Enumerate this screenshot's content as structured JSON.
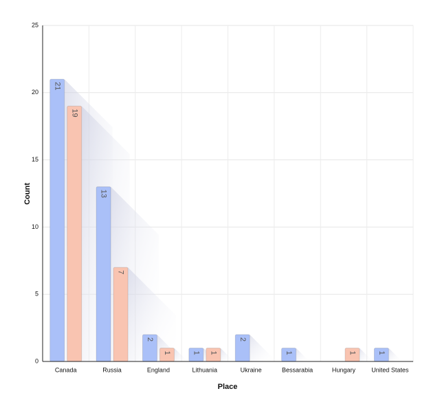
{
  "chart_data": {
    "type": "bar",
    "x_label": "Place",
    "y_label": "Count",
    "categories": [
      "Canada",
      "Russia",
      "England",
      "Lithuania",
      "Ukraine",
      "Bessarabia",
      "Hungary",
      "United States"
    ],
    "series": [
      {
        "color": "#aac0f8",
        "values": [
          21,
          13,
          2,
          1,
          2,
          1,
          null,
          1
        ]
      },
      {
        "color": "#f9c4b1",
        "values": [
          19,
          7,
          1,
          1,
          null,
          null,
          1,
          null
        ]
      }
    ],
    "ylim": [
      0,
      25
    ],
    "yticks": [
      0,
      5,
      10,
      15,
      20,
      25
    ],
    "grid": true
  }
}
